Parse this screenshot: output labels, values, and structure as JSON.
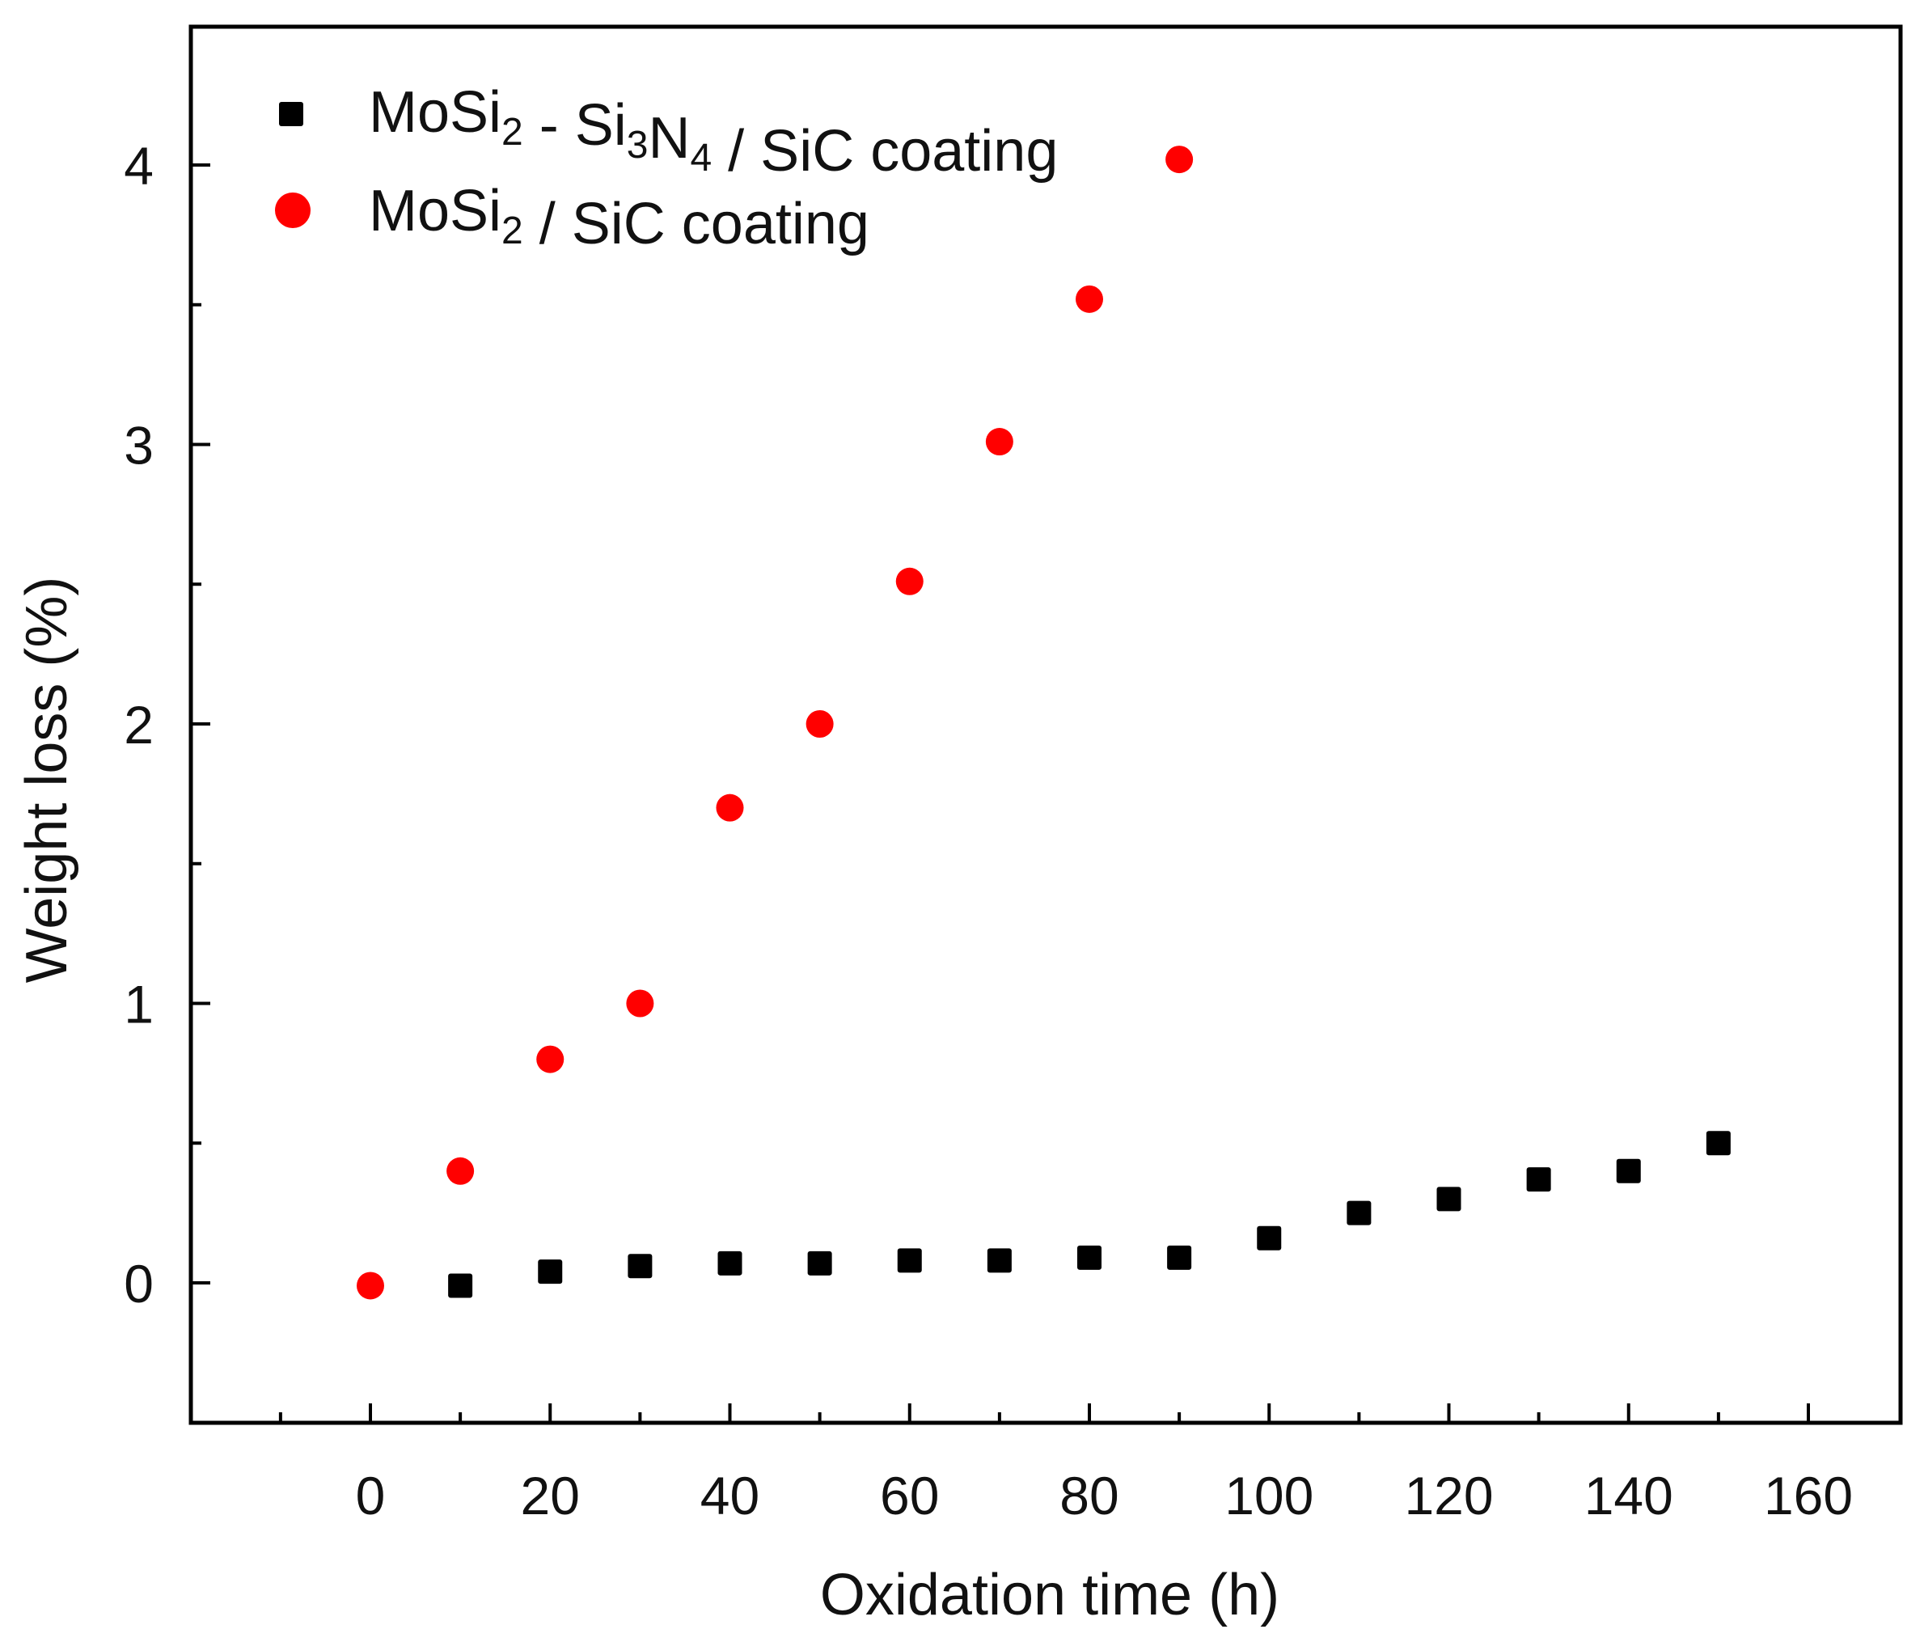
{
  "chart_data": {
    "type": "scatter",
    "title": "",
    "xlabel": "Oxidation time (h)",
    "ylabel": "Weight loss (%)",
    "xlim": [
      -20,
      170
    ],
    "ylim": [
      -0.5,
      4.5
    ],
    "xticks": [
      0,
      20,
      40,
      60,
      80,
      100,
      120,
      140,
      160
    ],
    "yticks": [
      0,
      1,
      2,
      3,
      4
    ],
    "legend_position": "top-left",
    "series": [
      {
        "name": "MoSi2 - Si3N4 / SiC coating",
        "name_parts": [
          {
            "t": "MoSi",
            "sub": false
          },
          {
            "t": "2",
            "sub": true
          },
          {
            "t": " - Si",
            "sub": false
          },
          {
            "t": "3",
            "sub": true
          },
          {
            "t": "N",
            "sub": false
          },
          {
            "t": "4",
            "sub": true
          },
          {
            "t": " / SiC coating",
            "sub": false
          }
        ],
        "marker": "square",
        "color": "#000000",
        "x": [
          10,
          20,
          30,
          40,
          50,
          60,
          70,
          80,
          90,
          100,
          110,
          120,
          130,
          140,
          150
        ],
        "y": [
          -0.01,
          0.04,
          0.06,
          0.07,
          0.07,
          0.08,
          0.08,
          0.09,
          0.09,
          0.16,
          0.25,
          0.3,
          0.37,
          0.4,
          0.5
        ]
      },
      {
        "name": "MoSi2 / SiC coating",
        "name_parts": [
          {
            "t": "MoSi",
            "sub": false
          },
          {
            "t": "2",
            "sub": true
          },
          {
            "t": " / SiC coating",
            "sub": false
          }
        ],
        "marker": "circle",
        "color": "#ff0000",
        "x": [
          0,
          10,
          20,
          30,
          40,
          50,
          60,
          70,
          80,
          90
        ],
        "y": [
          -0.01,
          0.4,
          0.8,
          1.0,
          1.7,
          2.0,
          2.51,
          3.01,
          3.52,
          4.02
        ]
      }
    ]
  }
}
